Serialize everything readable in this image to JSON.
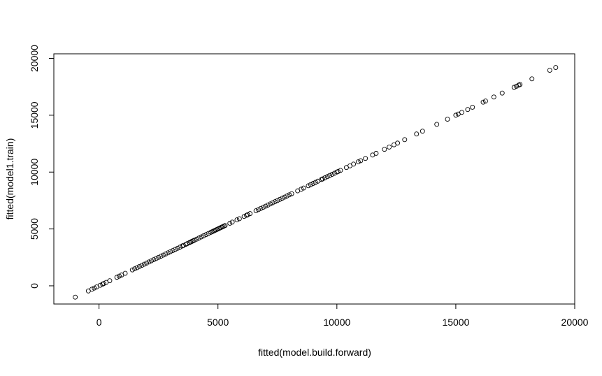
{
  "chart_data": {
    "type": "scatter",
    "title": "",
    "xlabel": "fitted(model.build.forward)",
    "ylabel": "fitted(model1.train)",
    "xlim": [
      -1900,
      20000
    ],
    "ylim": [
      -1600,
      20400
    ],
    "xticks": [
      0,
      5000,
      10000,
      15000,
      20000
    ],
    "yticks": [
      0,
      5000,
      10000,
      15000,
      20000
    ],
    "xtick_labels": [
      "0",
      "5000",
      "10000",
      "15000",
      "20000"
    ],
    "ytick_labels": [
      "0",
      "5000",
      "10000",
      "15000",
      "20000"
    ],
    "grid": false,
    "marker": "open-circle",
    "color": "#000000",
    "points": {
      "x": [
        -1000,
        -450,
        -300,
        -200,
        -100,
        50,
        150,
        200,
        300,
        450,
        750,
        850,
        950,
        1100,
        1400,
        1500,
        1600,
        1700,
        1800,
        1900,
        2000,
        2100,
        2200,
        2300,
        2400,
        2500,
        2600,
        2700,
        2800,
        2900,
        3000,
        3100,
        3200,
        3300,
        3400,
        3500,
        3550,
        3650,
        3700,
        3800,
        3850,
        3900,
        3950,
        4000,
        4100,
        4200,
        4300,
        4400,
        4500,
        4600,
        4700,
        4750,
        4800,
        4850,
        4900,
        4950,
        5000,
        5050,
        5100,
        5150,
        5200,
        5250,
        5300,
        5500,
        5600,
        5800,
        5900,
        6100,
        6200,
        6250,
        6350,
        6600,
        6700,
        6800,
        6900,
        7000,
        7100,
        7200,
        7300,
        7400,
        7500,
        7600,
        7700,
        7800,
        7900,
        8000,
        8100,
        8350,
        8500,
        8600,
        8800,
        8900,
        9000,
        9100,
        9200,
        9350,
        9400,
        9500,
        9600,
        9700,
        9800,
        9900,
        10000,
        10050,
        10150,
        10400,
        10550,
        10700,
        10900,
        11000,
        11200,
        11500,
        11650,
        12000,
        12200,
        12400,
        12550,
        12850,
        13350,
        13600,
        14200,
        14650,
        15000,
        15100,
        15250,
        15500,
        15700,
        16150,
        16250,
        16600,
        16950,
        17450,
        17550,
        17650,
        17700,
        18200,
        18950,
        19200
      ],
      "y": [
        -1000,
        -450,
        -300,
        -200,
        -100,
        50,
        150,
        200,
        300,
        450,
        750,
        850,
        950,
        1100,
        1400,
        1500,
        1600,
        1700,
        1800,
        1900,
        2000,
        2100,
        2200,
        2300,
        2400,
        2500,
        2600,
        2700,
        2800,
        2900,
        3000,
        3100,
        3200,
        3300,
        3400,
        3500,
        3550,
        3650,
        3700,
        3800,
        3850,
        3900,
        3950,
        4000,
        4100,
        4200,
        4300,
        4400,
        4500,
        4600,
        4700,
        4750,
        4800,
        4850,
        4900,
        4950,
        5000,
        5050,
        5100,
        5150,
        5200,
        5250,
        5300,
        5500,
        5600,
        5800,
        5900,
        6100,
        6200,
        6250,
        6350,
        6600,
        6700,
        6800,
        6900,
        7000,
        7100,
        7200,
        7300,
        7400,
        7500,
        7600,
        7700,
        7800,
        7900,
        8000,
        8100,
        8350,
        8500,
        8600,
        8800,
        8900,
        9000,
        9100,
        9200,
        9350,
        9400,
        9500,
        9600,
        9700,
        9800,
        9900,
        10000,
        10050,
        10150,
        10400,
        10550,
        10700,
        10900,
        11000,
        11200,
        11500,
        11650,
        12000,
        12200,
        12400,
        12550,
        12850,
        13350,
        13600,
        14200,
        14650,
        15000,
        15100,
        15250,
        15500,
        15700,
        16150,
        16250,
        16600,
        16950,
        17450,
        17550,
        17650,
        17700,
        18200,
        18950,
        19200
      ]
    }
  }
}
